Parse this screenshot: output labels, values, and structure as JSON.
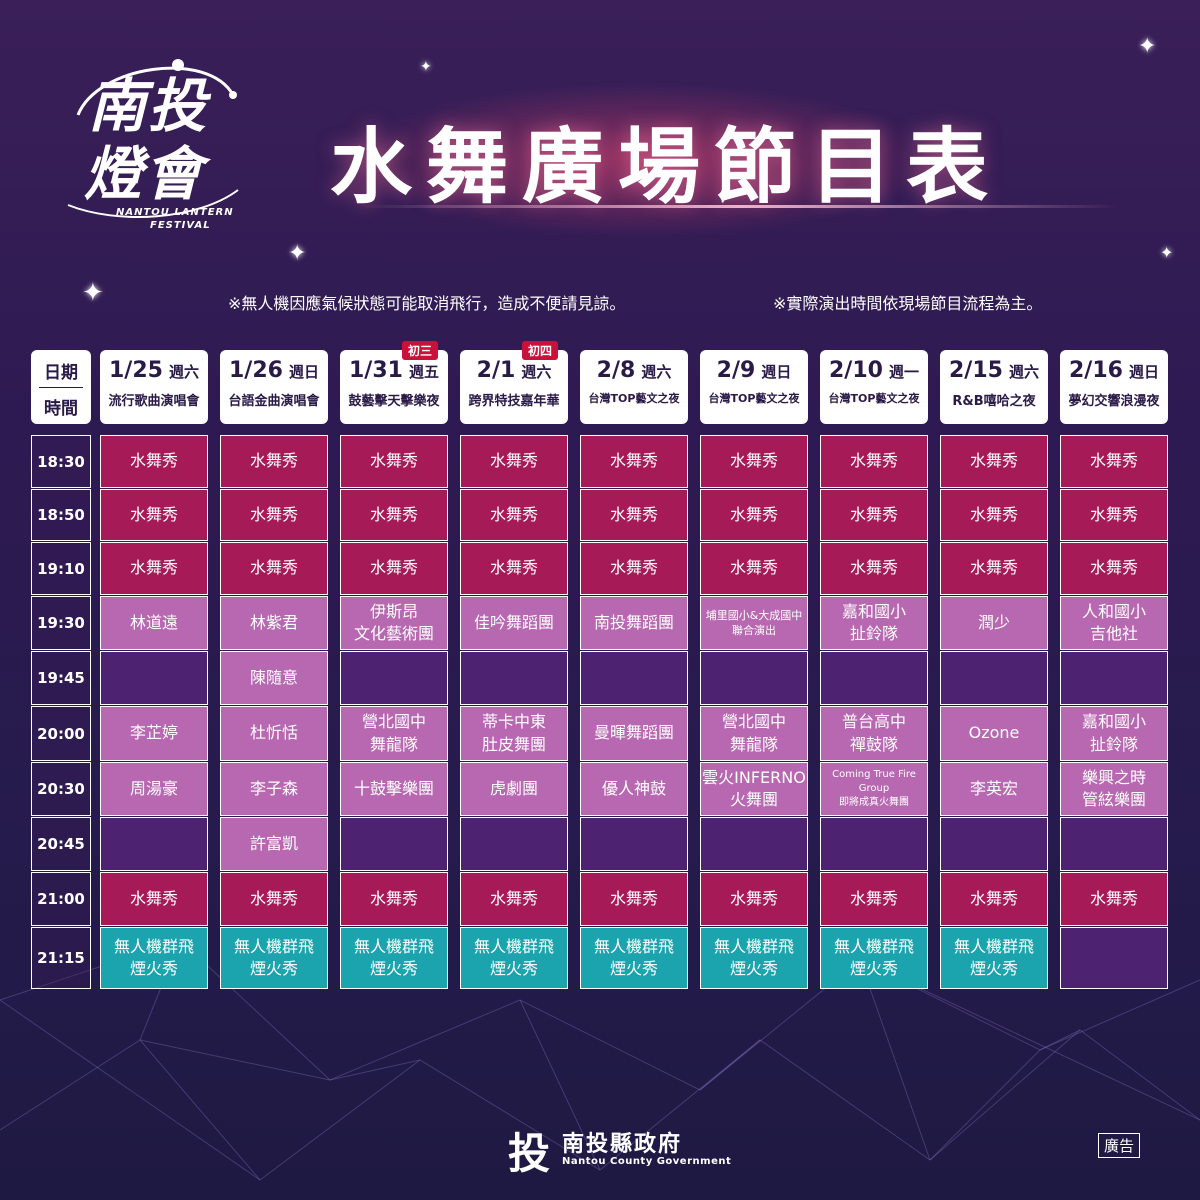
{
  "logo": {
    "line1": "南投",
    "line2": "燈會",
    "en_line1": "NANTOU LANTERN",
    "en_line2": "FESTIVAL"
  },
  "title": "水舞廣場節目表",
  "notes": [
    "※無人機因應氣候狀態可能取消飛行，造成不便請見諒。",
    "※實際演出時間依現場節目流程為主。"
  ],
  "header": {
    "date_label": "日期",
    "time_label": "時間"
  },
  "days": [
    {
      "date": "1/25",
      "weekday": "週六",
      "event": "流行歌曲演唱會",
      "badge": ""
    },
    {
      "date": "1/26",
      "weekday": "週日",
      "event": "台語金曲演唱會",
      "badge": ""
    },
    {
      "date": "1/31",
      "weekday": "週五",
      "event": "鼓藝擊天擊樂夜",
      "badge": "初三"
    },
    {
      "date": "2/1",
      "weekday": "週六",
      "event": "跨界特技嘉年華",
      "badge": "初四"
    },
    {
      "date": "2/8",
      "weekday": "週六",
      "event": "台灣TOP藝文之夜",
      "badge": ""
    },
    {
      "date": "2/9",
      "weekday": "週日",
      "event": "台灣TOP藝文之夜",
      "badge": ""
    },
    {
      "date": "2/10",
      "weekday": "週一",
      "event": "台灣TOP藝文之夜",
      "badge": ""
    },
    {
      "date": "2/15",
      "weekday": "週六",
      "event": "R&B嘻哈之夜",
      "badge": ""
    },
    {
      "date": "2/16",
      "weekday": "週日",
      "event": "夢幻交響浪漫夜",
      "badge": ""
    }
  ],
  "times": [
    "18:30",
    "18:50",
    "19:10",
    "19:30",
    "19:45",
    "20:00",
    "20:30",
    "20:45",
    "21:00",
    "21:15"
  ],
  "schedule": [
    [
      "水舞秀",
      "水舞秀",
      "水舞秀",
      "水舞秀",
      "水舞秀",
      "水舞秀",
      "水舞秀",
      "水舞秀",
      "水舞秀"
    ],
    [
      "水舞秀",
      "水舞秀",
      "水舞秀",
      "水舞秀",
      "水舞秀",
      "水舞秀",
      "水舞秀",
      "水舞秀",
      "水舞秀"
    ],
    [
      "水舞秀",
      "水舞秀",
      "水舞秀",
      "水舞秀",
      "水舞秀",
      "水舞秀",
      "水舞秀",
      "水舞秀",
      "水舞秀"
    ],
    [
      "林道遠",
      "林紫君",
      "伊斯昂\n文化藝術團",
      "佳吟舞蹈團",
      "南投舞蹈團",
      "埔里國小&大成國中\n聯合演出",
      "嘉和國小\n扯鈴隊",
      "潤少",
      "人和國小\n吉他社"
    ],
    [
      "",
      "陳隨意",
      "",
      "",
      "",
      "",
      "",
      "",
      ""
    ],
    [
      "李芷婷",
      "杜忻恬",
      "營北國中\n舞龍隊",
      "蒂卡中東\n肚皮舞團",
      "曼暉舞蹈團",
      "營北國中\n舞龍隊",
      "普台高中\n禪鼓隊",
      "Ozone",
      "嘉和國小\n扯鈴隊"
    ],
    [
      "周湯豪",
      "李子森",
      "十鼓擊樂團",
      "虎劇團",
      "優人神鼓",
      "雲火INFERNO\n火舞團",
      "Coming True Fire Group\n即將成真火舞團",
      "李英宏",
      "樂興之時\n管絃樂團"
    ],
    [
      "",
      "許富凱",
      "",
      "",
      "",
      "",
      "",
      "",
      ""
    ],
    [
      "水舞秀",
      "水舞秀",
      "水舞秀",
      "水舞秀",
      "水舞秀",
      "水舞秀",
      "水舞秀",
      "水舞秀",
      "水舞秀"
    ],
    [
      "無人機群飛\n煙火秀",
      "無人機群飛\n煙火秀",
      "無人機群飛\n煙火秀",
      "無人機群飛\n煙火秀",
      "無人機群飛\n煙火秀",
      "無人機群飛\n煙火秀",
      "無人機群飛\n煙火秀",
      "無人機群飛\n煙火秀",
      ""
    ]
  ],
  "colors": {
    "show": "#a51a57",
    "act": "#b768b0",
    "empty": "#4d2270",
    "drone": "#1ca4ae",
    "badge": "#c8123a"
  },
  "footer": {
    "mark": "投",
    "name_zh": "南投縣政府",
    "name_en": "Nantou County Government",
    "ad": "廣告"
  }
}
